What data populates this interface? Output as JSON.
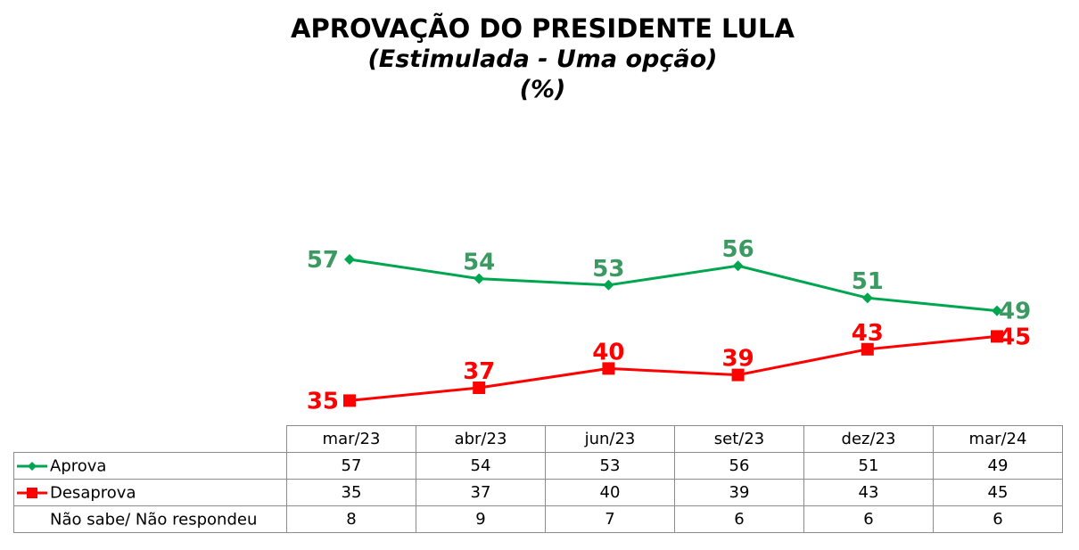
{
  "title": {
    "line1": "APROVAÇÃO DO PRESIDENTE LULA",
    "line2": "(Estimulada - Uma opção)",
    "line3": "(%)"
  },
  "colors": {
    "aprova": "#00a64f",
    "aprova_label": "#3a9a62",
    "desaprova": "#ff0000"
  },
  "chart_data": {
    "type": "line",
    "categories": [
      "mar/23",
      "abr/23",
      "jun/23",
      "set/23",
      "dez/23",
      "mar/24"
    ],
    "series": [
      {
        "name": "Aprova",
        "values": [
          57,
          54,
          53,
          56,
          51,
          49
        ],
        "marker": "diamond"
      },
      {
        "name": "Desaprova",
        "values": [
          35,
          37,
          40,
          39,
          43,
          45
        ],
        "marker": "square"
      }
    ],
    "title": "APROVAÇÃO DO PRESIDENTE LULA",
    "subtitle": "(Estimulada - Uma opção)",
    "unit": "(%)",
    "legend": "data-table",
    "grid": false
  },
  "table": {
    "headers": [
      "mar/23",
      "abr/23",
      "jun/23",
      "set/23",
      "dez/23",
      "mar/24"
    ],
    "rows": [
      {
        "label": "Aprova",
        "values": [
          "57",
          "54",
          "53",
          "56",
          "51",
          "49"
        ],
        "marker": "diamond"
      },
      {
        "label": "Desaprova",
        "values": [
          "35",
          "37",
          "40",
          "39",
          "43",
          "45"
        ],
        "marker": "square"
      },
      {
        "label": "Não sabe/ Não respondeu",
        "values": [
          "8",
          "9",
          "7",
          "6",
          "6",
          "6"
        ],
        "marker": "none"
      }
    ]
  }
}
